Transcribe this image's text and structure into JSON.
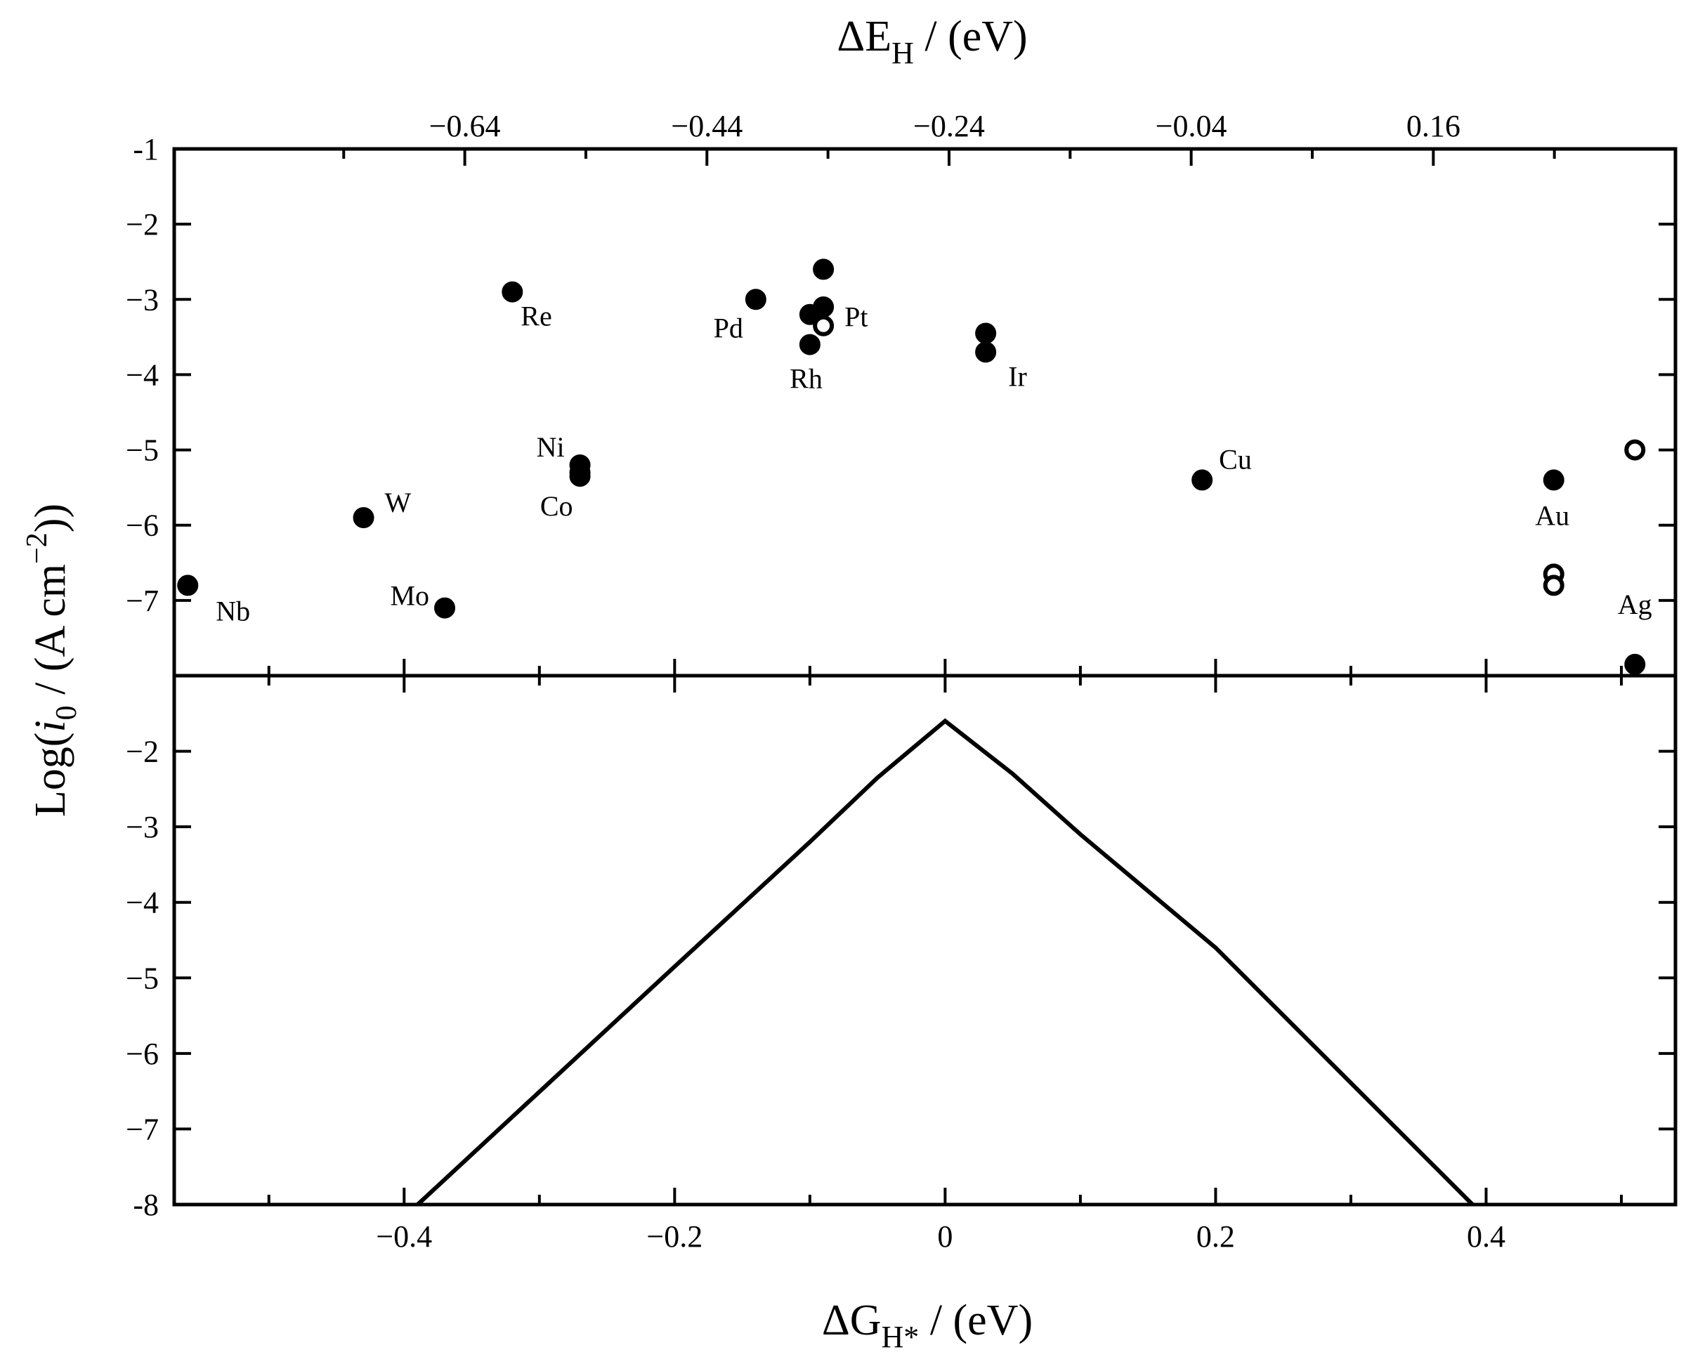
{
  "chart_data": [
    {
      "type": "scatter",
      "panel": "top",
      "xlabel": "ΔE_H / (eV)",
      "xlabel_parts": {
        "base": "ΔE",
        "sub": "H",
        "rest": " / (eV)"
      },
      "x_axis_position": "top",
      "xlim": [
        -0.88,
        0.36
      ],
      "x_ticks": [
        -0.64,
        -0.44,
        -0.24,
        -0.04,
        0.16
      ],
      "x_tick_labels": [
        "−0.64",
        "−0.44",
        "−0.24",
        "−0.04",
        "0.16"
      ],
      "ylim": [
        -8,
        -1
      ],
      "y_ticks": [
        -1,
        -2,
        -3,
        -4,
        -5,
        -6,
        -7
      ],
      "y_tick_labels": [
        "-1",
        "−2",
        "−3",
        "−4",
        "−5",
        "−6",
        "−7"
      ],
      "ylabel": "Log(i_0 / (A cm^-2))",
      "ylabel_parts": {
        "pre": "Log(",
        "italic": "i",
        "sub": "0",
        "mid": " / (A cm",
        "sup": "−2",
        "post": "))"
      },
      "points": [
        {
          "metal": "Nb",
          "dG": -0.56,
          "y": -6.8,
          "filled": true
        },
        {
          "metal": "W",
          "dG": -0.43,
          "y": -5.9,
          "filled": true
        },
        {
          "metal": "Mo",
          "dG": -0.37,
          "y": -7.1,
          "filled": true
        },
        {
          "metal": "Re",
          "dG": -0.32,
          "y": -2.9,
          "filled": true
        },
        {
          "metal": "Ni",
          "dG": -0.27,
          "y": -5.2,
          "filled": true
        },
        {
          "metal": "Ni",
          "dG": -0.27,
          "y": -5.3,
          "filled": true
        },
        {
          "metal": "Co",
          "dG": -0.27,
          "y": -5.35,
          "filled": true
        },
        {
          "metal": "Pd",
          "dG": -0.14,
          "y": -3.0,
          "filled": true
        },
        {
          "metal": "Pt",
          "dG": -0.09,
          "y": -2.6,
          "filled": true
        },
        {
          "metal": "Pt",
          "dG": -0.09,
          "y": -3.1,
          "filled": true
        },
        {
          "metal": "Pt",
          "dG": -0.1,
          "y": -3.2,
          "filled": true
        },
        {
          "metal": "Pt",
          "dG": -0.09,
          "y": -3.35,
          "filled": false
        },
        {
          "metal": "Rh",
          "dG": -0.1,
          "y": -3.6,
          "filled": true
        },
        {
          "metal": "Ir",
          "dG": 0.03,
          "y": -3.45,
          "filled": true
        },
        {
          "metal": "Ir",
          "dG": 0.03,
          "y": -3.7,
          "filled": true
        },
        {
          "metal": "Cu",
          "dG": 0.19,
          "y": -5.4,
          "filled": true
        },
        {
          "metal": "Au",
          "dG": 0.45,
          "y": -5.4,
          "filled": true
        },
        {
          "metal": "Au",
          "dG": 0.45,
          "y": -6.65,
          "filled": false
        },
        {
          "metal": "Au",
          "dG": 0.45,
          "y": -6.8,
          "filled": false
        },
        {
          "metal": "Ag",
          "dG": 0.51,
          "y": -5.0,
          "filled": false
        },
        {
          "metal": "Ag",
          "dG": 0.51,
          "y": -7.85,
          "filled": true
        }
      ],
      "labels": [
        {
          "text": "Nb",
          "dG": -0.56,
          "y": -6.8
        },
        {
          "text": "W",
          "dG": -0.43,
          "y": -5.9
        },
        {
          "text": "Mo",
          "dG": -0.37,
          "y": -7.1
        },
        {
          "text": "Re",
          "dG": -0.32,
          "y": -2.9
        },
        {
          "text": "Ni",
          "dG": -0.27,
          "y": -5.2
        },
        {
          "text": "Co",
          "dG": -0.27,
          "y": -5.35
        },
        {
          "text": "Pd",
          "dG": -0.14,
          "y": -3.0
        },
        {
          "text": "Pt",
          "dG": -0.09,
          "y": -3.3
        },
        {
          "text": "Rh",
          "dG": -0.1,
          "y": -3.6
        },
        {
          "text": "Ir",
          "dG": 0.03,
          "y": -3.7
        },
        {
          "text": "Cu",
          "dG": 0.19,
          "y": -5.4
        },
        {
          "text": "Au",
          "dG": 0.45,
          "y": -6.65
        },
        {
          "text": "Ag",
          "dG": 0.51,
          "y": -7.85
        }
      ]
    },
    {
      "type": "line",
      "panel": "bottom",
      "xlabel": "ΔG_H* / (eV)",
      "xlabel_parts": {
        "base": "ΔG",
        "sub": "H*",
        "rest": " / (eV)"
      },
      "xlim": [
        -0.57,
        0.54
      ],
      "x_ticks": [
        -0.4,
        -0.2,
        0,
        0.2,
        0.4
      ],
      "x_tick_labels": [
        "−0.4",
        "−0.2",
        "0",
        "0.2",
        "0.4"
      ],
      "ylim": [
        -8,
        -1
      ],
      "y_ticks": [
        -2,
        -3,
        -4,
        -5,
        -6,
        -7,
        -8
      ],
      "y_tick_labels": [
        "−2",
        "−3",
        "−4",
        "−5",
        "−6",
        "−7",
        "-8"
      ],
      "series": [
        {
          "x": [
            -0.39,
            -0.2,
            -0.1,
            -0.05,
            0,
            0.05,
            0.1,
            0.2,
            0.39
          ],
          "y": [
            -8.0,
            -4.85,
            -3.2,
            -2.35,
            -1.6,
            -2.3,
            -3.1,
            -4.6,
            -8.0
          ]
        }
      ]
    }
  ]
}
